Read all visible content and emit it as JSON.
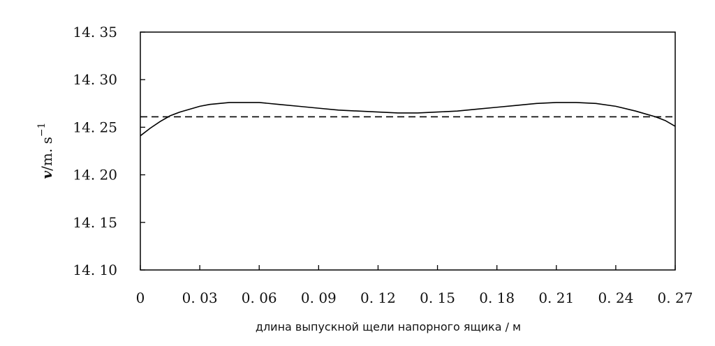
{
  "chart_data": {
    "type": "line",
    "title": "",
    "xlabel": "длина выпускной щели напорного ящика / м",
    "ylabel": {
      "symbol": "v",
      "unit": "/m. s",
      "exponent": "−1"
    },
    "xlim": [
      0,
      0.27
    ],
    "ylim": [
      14.1,
      14.35
    ],
    "x_ticks": [
      "0",
      "0. 03",
      "0. 06",
      "0. 09",
      "0. 12",
      "0. 15",
      "0. 18",
      "0. 21",
      "0. 24",
      "0. 27"
    ],
    "y_ticks": [
      "14. 10",
      "14. 15",
      "14. 20",
      "14. 25",
      "14. 30",
      "14. 35"
    ],
    "grid": false,
    "legend": "none",
    "series": [
      {
        "style": "solid",
        "color": "#000000",
        "x": [
          0,
          0.005,
          0.01,
          0.015,
          0.02,
          0.025,
          0.03,
          0.035,
          0.04,
          0.045,
          0.05,
          0.06,
          0.07,
          0.08,
          0.09,
          0.1,
          0.11,
          0.12,
          0.13,
          0.135,
          0.14,
          0.15,
          0.16,
          0.17,
          0.18,
          0.19,
          0.2,
          0.21,
          0.215,
          0.22,
          0.23,
          0.24,
          0.25,
          0.255,
          0.26,
          0.265,
          0.27
        ],
        "y": [
          14.241,
          14.249,
          14.256,
          14.262,
          14.266,
          14.269,
          14.272,
          14.274,
          14.275,
          14.276,
          14.276,
          14.276,
          14.274,
          14.272,
          14.27,
          14.268,
          14.267,
          14.266,
          14.265,
          14.265,
          14.265,
          14.266,
          14.267,
          14.269,
          14.271,
          14.273,
          14.275,
          14.276,
          14.276,
          14.276,
          14.275,
          14.272,
          14.267,
          14.264,
          14.261,
          14.257,
          14.251
        ]
      },
      {
        "style": "dashed",
        "color": "#000000",
        "x": [
          0,
          0.27
        ],
        "y": [
          14.261,
          14.261
        ]
      }
    ]
  }
}
